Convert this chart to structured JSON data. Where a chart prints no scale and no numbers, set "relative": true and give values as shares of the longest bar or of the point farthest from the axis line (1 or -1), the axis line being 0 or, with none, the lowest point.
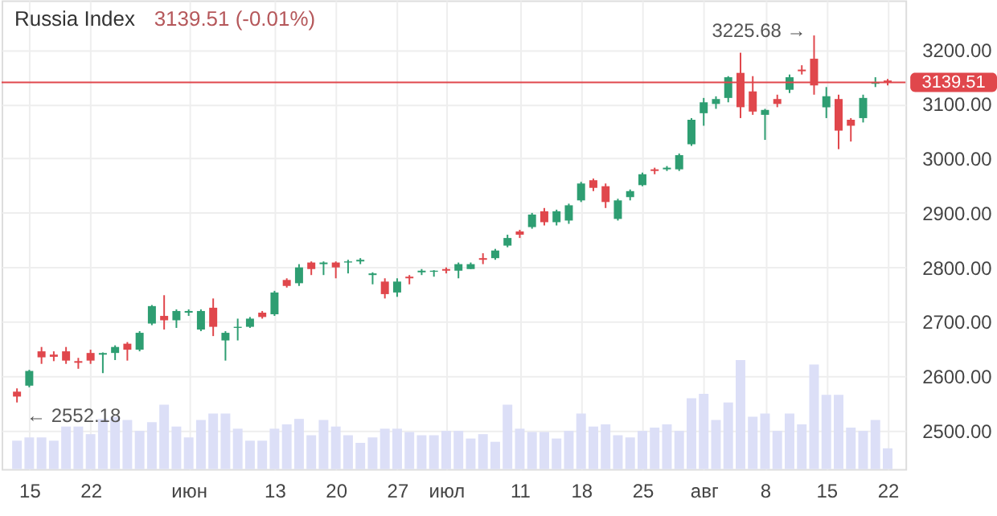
{
  "chart_data": [
    {
      "type": "candlestick",
      "title": "Russia Index",
      "subtitle": "3139.51 (-0.01%)",
      "categories": [
        null,
        "15",
        null,
        null,
        null,
        null,
        "22",
        null,
        null,
        null,
        null,
        null,
        null,
        null,
        "июн",
        null,
        null,
        null,
        null,
        null,
        null,
        "13",
        null,
        null,
        null,
        null,
        "20",
        null,
        null,
        null,
        null,
        "27",
        null,
        null,
        null,
        "июл",
        null,
        null,
        null,
        null,
        null,
        "11",
        null,
        null,
        null,
        null,
        "18",
        null,
        null,
        null,
        null,
        "25",
        null,
        null,
        null,
        null,
        "авг",
        null,
        null,
        null,
        null,
        "8",
        null,
        null,
        null,
        null,
        "15",
        null,
        null,
        null,
        null,
        "22"
      ],
      "ohlc": [
        [
          2572,
          2578,
          2552.18,
          2563
        ],
        [
          2583,
          2612,
          2580,
          2610
        ],
        [
          2646,
          2654,
          2623,
          2635
        ],
        [
          2640,
          2646,
          2628,
          2636
        ],
        [
          2646,
          2654,
          2623,
          2629
        ],
        [
          2628,
          2634,
          2614,
          2625
        ],
        [
          2643,
          2649,
          2623,
          2629
        ],
        [
          2640,
          2644,
          2606,
          2643
        ],
        [
          2643,
          2657,
          2630,
          2654
        ],
        [
          2660,
          2663,
          2629,
          2649
        ],
        [
          2649,
          2683,
          2646,
          2680
        ],
        [
          2697,
          2731,
          2694,
          2729
        ],
        [
          2711,
          2749,
          2686,
          2703
        ],
        [
          2703,
          2723,
          2689,
          2720
        ],
        [
          2717,
          2723,
          2711,
          2720
        ],
        [
          2686,
          2723,
          2683,
          2720
        ],
        [
          2726,
          2743,
          2674,
          2691
        ],
        [
          2666,
          2683,
          2629,
          2680
        ],
        [
          2689,
          2706,
          2666,
          2691
        ],
        [
          2691,
          2709,
          2689,
          2706
        ],
        [
          2717,
          2720,
          2706,
          2709
        ],
        [
          2714,
          2757,
          2711,
          2754
        ],
        [
          2777,
          2780,
          2763,
          2766
        ],
        [
          2771,
          2806,
          2766,
          2800
        ],
        [
          2809,
          2811,
          2786,
          2797
        ],
        [
          2806,
          2811,
          2786,
          2809
        ],
        [
          2809,
          2811,
          2780,
          2800
        ],
        [
          2809,
          2814,
          2789,
          2811
        ],
        [
          2811,
          2817,
          2806,
          2814
        ],
        [
          2786,
          2791,
          2769,
          2789
        ],
        [
          2774,
          2780,
          2743,
          2751
        ],
        [
          2754,
          2780,
          2746,
          2774
        ],
        [
          2783,
          2786,
          2769,
          2780
        ],
        [
          2791,
          2797,
          2786,
          2794
        ],
        [
          2792,
          2795,
          2783,
          2794
        ],
        [
          2797,
          2800,
          2789,
          2794
        ],
        [
          2794,
          2809,
          2780,
          2806
        ],
        [
          2797,
          2809,
          2797,
          2806
        ],
        [
          2817,
          2826,
          2806,
          2814
        ],
        [
          2817,
          2834,
          2814,
          2831
        ],
        [
          2840,
          2860,
          2837,
          2854
        ],
        [
          2866,
          2869,
          2854,
          2860
        ],
        [
          2874,
          2900,
          2871,
          2897
        ],
        [
          2903,
          2909,
          2877,
          2883
        ],
        [
          2883,
          2906,
          2877,
          2903
        ],
        [
          2886,
          2917,
          2880,
          2914
        ],
        [
          2923,
          2957,
          2920,
          2954
        ],
        [
          2960,
          2963,
          2940,
          2946
        ],
        [
          2949,
          2954,
          2909,
          2920
        ],
        [
          2889,
          2926,
          2886,
          2923
        ],
        [
          2929,
          2943,
          2923,
          2940
        ],
        [
          2951,
          2974,
          2949,
          2971
        ],
        [
          2980,
          2983,
          2971,
          2977
        ],
        [
          2980,
          2986,
          2977,
          2983
        ],
        [
          2980,
          3009,
          2977,
          3006
        ],
        [
          3026,
          3074,
          3023,
          3071
        ],
        [
          3083,
          3111,
          3060,
          3103
        ],
        [
          3100,
          3114,
          3091,
          3109
        ],
        [
          3111,
          3151,
          3103,
          3149
        ],
        [
          3157,
          3194,
          3074,
          3094
        ],
        [
          3123,
          3151,
          3080,
          3086
        ],
        [
          3080,
          3091,
          3034,
          3089
        ],
        [
          3109,
          3117,
          3094,
          3100
        ],
        [
          3126,
          3154,
          3120,
          3149
        ],
        [
          3163,
          3171,
          3154,
          3160
        ],
        [
          3183,
          3225.68,
          3117,
          3134
        ],
        [
          3094,
          3131,
          3074,
          3114
        ],
        [
          3109,
          3117,
          3017,
          3051
        ],
        [
          3071,
          3074,
          3031,
          3060
        ],
        [
          3074,
          3117,
          3066,
          3111
        ],
        [
          3137,
          3149,
          3131,
          3140
        ],
        [
          3143,
          3146,
          3134,
          3139.51
        ]
      ],
      "colors": [
        "#e0474c",
        "#2e9e72",
        "#e0474c",
        "#e0474c",
        "#e0474c",
        "#e0474c",
        "#e0474c",
        "#2e9e72",
        "#2e9e72",
        "#e0474c",
        "#2e9e72",
        "#2e9e72",
        "#e0474c",
        "#2e9e72",
        "#2e9e72",
        "#2e9e72",
        "#e0474c",
        "#2e9e72",
        "#2e9e72",
        "#2e9e72",
        "#e0474c",
        "#2e9e72",
        "#e0474c",
        "#2e9e72",
        "#e0474c",
        "#2e9e72",
        "#e0474c",
        "#2e9e72",
        "#2e9e72",
        "#2e9e72",
        "#e0474c",
        "#2e9e72",
        "#e0474c",
        "#2e9e72",
        "#2e9e72",
        "#e0474c",
        "#2e9e72",
        "#2e9e72",
        "#e0474c",
        "#2e9e72",
        "#2e9e72",
        "#e0474c",
        "#2e9e72",
        "#e0474c",
        "#2e9e72",
        "#2e9e72",
        "#2e9e72",
        "#e0474c",
        "#e0474c",
        "#2e9e72",
        "#2e9e72",
        "#2e9e72",
        "#e0474c",
        "#2e9e72",
        "#2e9e72",
        "#2e9e72",
        "#2e9e72",
        "#2e9e72",
        "#2e9e72",
        "#e0474c",
        "#e0474c",
        "#2e9e72",
        "#e0474c",
        "#2e9e72",
        "#e0474c",
        "#e0474c",
        "#2e9e72",
        "#e0474c",
        "#e0474c",
        "#2e9e72",
        "#2e9e72",
        "#e0474c"
      ],
      "ylim": [
        2430,
        3290
      ],
      "yticks": [
        {
          "value": 2500,
          "label": "2500.00"
        },
        {
          "value": 2600,
          "label": "2600.00"
        },
        {
          "value": 2700,
          "label": "2700.00"
        },
        {
          "value": 2800,
          "label": "2800.00"
        },
        {
          "value": 2900,
          "label": "2900.00"
        },
        {
          "value": 3000,
          "label": "3000.00"
        },
        {
          "value": 3100,
          "label": "3100.00"
        },
        {
          "value": 3200,
          "label": "3200.00"
        }
      ],
      "grid": true,
      "ref_lines": [
        {
          "axis": "y",
          "value": 3139.51,
          "label": "3139.51",
          "color": "#e0474c"
        }
      ],
      "annotations": [
        "3225.68 →",
        "← 2552.18"
      ]
    },
    {
      "type": "bar",
      "relative": true,
      "color": "#dcdff7",
      "categories": [
        null,
        null,
        null,
        null,
        null,
        null,
        null,
        null,
        null,
        null,
        null,
        null,
        null,
        null,
        null,
        null,
        null,
        null,
        null,
        null,
        null,
        null,
        null,
        null,
        null,
        null,
        null,
        null,
        null,
        null,
        null,
        null,
        null,
        null,
        null,
        null,
        null,
        null,
        null,
        null,
        null,
        null,
        null,
        null,
        null,
        null,
        null,
        null,
        null,
        null,
        null,
        null,
        null,
        null,
        null,
        null,
        null,
        null,
        null,
        null,
        null,
        null,
        null,
        null,
        null,
        null,
        null,
        null,
        null,
        null,
        null,
        null
      ],
      "values": [
        0.26,
        0.29,
        0.29,
        0.26,
        0.39,
        0.39,
        0.32,
        0.46,
        0.48,
        0.45,
        0.35,
        0.43,
        0.59,
        0.39,
        0.29,
        0.45,
        0.51,
        0.51,
        0.37,
        0.26,
        0.26,
        0.37,
        0.41,
        0.46,
        0.31,
        0.45,
        0.39,
        0.31,
        0.24,
        0.29,
        0.37,
        0.37,
        0.34,
        0.31,
        0.31,
        0.35,
        0.35,
        0.28,
        0.32,
        0.25,
        0.59,
        0.37,
        0.34,
        0.34,
        0.28,
        0.35,
        0.51,
        0.39,
        0.41,
        0.31,
        0.29,
        0.35,
        0.38,
        0.41,
        0.35,
        0.65,
        0.69,
        0.45,
        0.61,
        1.0,
        0.48,
        0.51,
        0.35,
        0.51,
        0.41,
        0.96,
        0.68,
        0.68,
        0.38,
        0.35,
        0.45,
        0.19
      ]
    }
  ]
}
